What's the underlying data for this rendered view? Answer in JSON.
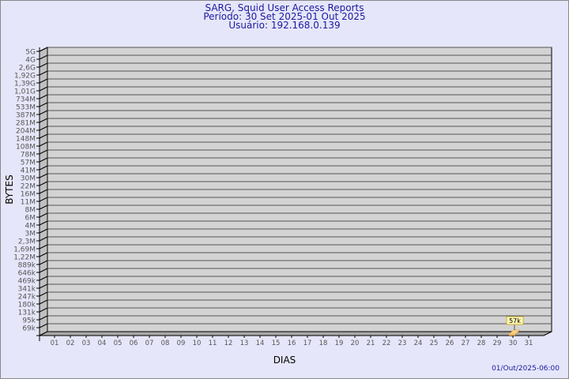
{
  "chart_data": {
    "type": "bar",
    "title": "SARG, Squid User Access Reports",
    "subtitle": [
      "Período: 30 Set 2025-01 Out 2025",
      "Usuário: 192.168.0.139"
    ],
    "xlabel": "DIAS",
    "ylabel": "BYTES",
    "y_scale": "log",
    "y_tick_labels": [
      "5G",
      "4G",
      "2,6G",
      "1,92G",
      "1,39G",
      "1,01G",
      "734M",
      "533M",
      "387M",
      "281M",
      "204M",
      "148M",
      "108M",
      "78M",
      "57M",
      "41M",
      "30M",
      "22M",
      "16M",
      "11M",
      "8M",
      "6M",
      "4M",
      "3M",
      "2,3M",
      "1,69M",
      "1,22M",
      "889k",
      "646k",
      "469k",
      "341k",
      "247k",
      "180k",
      "131k",
      "95k",
      "69k"
    ],
    "categories": [
      "01",
      "02",
      "03",
      "04",
      "05",
      "06",
      "07",
      "08",
      "09",
      "10",
      "11",
      "12",
      "13",
      "14",
      "15",
      "16",
      "17",
      "18",
      "19",
      "20",
      "21",
      "22",
      "23",
      "24",
      "25",
      "26",
      "27",
      "28",
      "29",
      "30",
      "31"
    ],
    "bars": [
      {
        "x": "30",
        "value": "57k"
      }
    ],
    "grid": true,
    "footer": "01/Out/2025-06:00",
    "colors": {
      "background": "#e6e6fa",
      "wall": "#d3d3d3",
      "side": "#c0c0c0",
      "bar": "#ffd080",
      "title": "#1a1aa0"
    }
  }
}
